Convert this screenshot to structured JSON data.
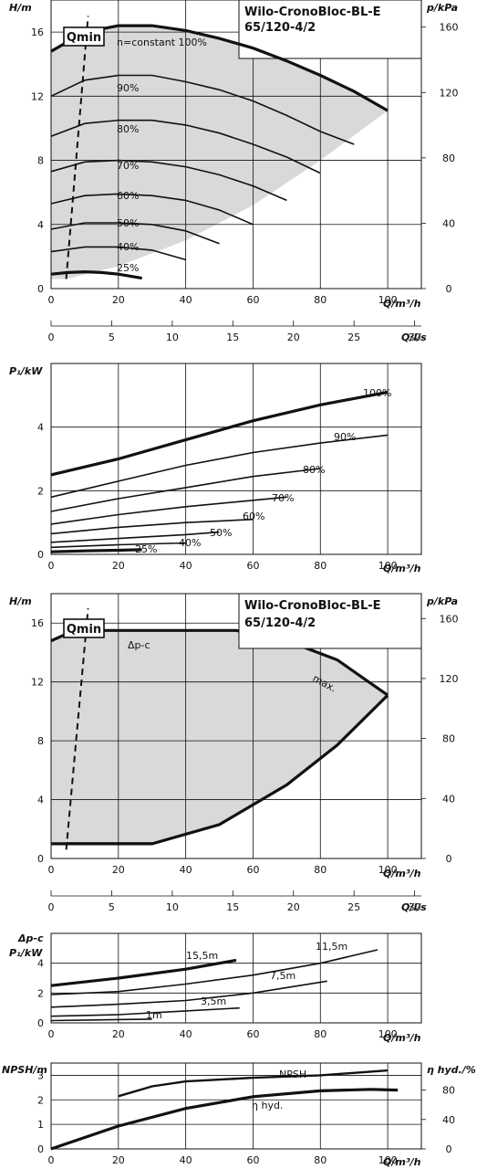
{
  "panels": {
    "head": {
      "title_line1": "Wilo-CronoBloc-BL-E",
      "title_line2": "65/120-4/2",
      "ylabel": "H/m",
      "ylabel_right": "p/kPa",
      "xlabel": "Q/m³/h",
      "qmin_label": "Qmin"
    },
    "flow_ls": {
      "xlabel": "Q/l/s"
    },
    "power": {
      "ylabel": "P₁/kW",
      "xlabel": "Q/m³/h"
    },
    "head2": {
      "title_line1": "Wilo-CronoBloc-BL-E",
      "title_line2": "65/120-4/2",
      "ylabel": "H/m",
      "ylabel_right": "p/kPa",
      "xlabel": "Q/m³/h",
      "qmin_label": "Qmin",
      "dpc_label": "Δp-c",
      "max_label": "max."
    },
    "flow_ls2": {
      "xlabel": "Q/l/s"
    },
    "power2": {
      "ylabel": "Δp-c",
      "ylabel2": "P₁/kW",
      "xlabel": "Q/m³/h"
    },
    "npsh": {
      "ylabel": "NPSH/m",
      "ylabel_right": "η hyd./%",
      "xlabel": "Q/m³/h"
    }
  },
  "chart_data": [
    {
      "id": "head-curves",
      "type": "line",
      "xlabel": "Q/m³/h",
      "ylabel": "H/m",
      "ylabel_right": "p/kPa",
      "xlim": [
        0,
        110
      ],
      "ylim": [
        0,
        18
      ],
      "ylim_right": [
        0,
        176.6
      ],
      "xticks": [
        0,
        20,
        40,
        60,
        80,
        100
      ],
      "yticks": [
        0,
        4,
        8,
        12,
        16
      ],
      "yticks_right": [
        0,
        40,
        80,
        120,
        160
      ],
      "series": [
        {
          "name": "n=constant 100%",
          "x": [
            0,
            10,
            20,
            30,
            40,
            50,
            60,
            70,
            80,
            90,
            100
          ],
          "y": [
            14.8,
            16.0,
            16.4,
            16.4,
            16.1,
            15.6,
            15.0,
            14.2,
            13.3,
            12.3,
            11.1
          ]
        },
        {
          "name": "90%",
          "x": [
            0,
            10,
            20,
            30,
            40,
            50,
            60,
            70,
            80,
            90
          ],
          "y": [
            12.0,
            13.0,
            13.3,
            13.3,
            12.9,
            12.4,
            11.7,
            10.8,
            9.8,
            9.0
          ]
        },
        {
          "name": "80%",
          "x": [
            0,
            10,
            20,
            30,
            40,
            50,
            60,
            70,
            80
          ],
          "y": [
            9.5,
            10.3,
            10.5,
            10.5,
            10.2,
            9.7,
            9.0,
            8.2,
            7.2
          ]
        },
        {
          "name": "70%",
          "x": [
            0,
            10,
            20,
            30,
            40,
            50,
            60,
            70
          ],
          "y": [
            7.3,
            7.9,
            8.0,
            7.9,
            7.6,
            7.1,
            6.4,
            5.5
          ]
        },
        {
          "name": "60%",
          "x": [
            0,
            10,
            20,
            30,
            40,
            50,
            60
          ],
          "y": [
            5.3,
            5.8,
            5.9,
            5.8,
            5.5,
            4.9,
            4.0
          ]
        },
        {
          "name": "50%",
          "x": [
            0,
            10,
            20,
            30,
            40,
            50
          ],
          "y": [
            3.7,
            4.1,
            4.1,
            4.0,
            3.6,
            2.8
          ]
        },
        {
          "name": "40%",
          "x": [
            0,
            10,
            20,
            30,
            40
          ],
          "y": [
            2.3,
            2.6,
            2.6,
            2.4,
            1.8
          ]
        },
        {
          "name": "25%",
          "x": [
            0,
            5,
            10,
            15,
            20,
            27
          ],
          "y": [
            0.9,
            1.0,
            1.05,
            1.0,
            0.9,
            0.65
          ]
        }
      ],
      "qmin": {
        "x": [
          4.5,
          11
        ],
        "y": [
          0.6,
          17
        ]
      },
      "region_lower_boundary": {
        "x": [
          4.5,
          20,
          40,
          60,
          80,
          100
        ],
        "y": [
          0.6,
          1.4,
          3.0,
          5.2,
          8.0,
          11.1
        ]
      }
    },
    {
      "id": "flow-ls-axis",
      "type": "axis",
      "xlabel": "Q/l/s",
      "xticks": [
        0,
        5,
        10,
        15,
        20,
        25,
        30
      ]
    },
    {
      "id": "power-curves",
      "type": "line",
      "xlabel": "Q/m³/h",
      "ylabel": "P₁/kW",
      "xlim": [
        0,
        110
      ],
      "ylim": [
        0,
        6
      ],
      "xticks": [
        0,
        20,
        40,
        60,
        80,
        100
      ],
      "yticks": [
        0,
        2,
        4
      ],
      "series": [
        {
          "name": "100%",
          "x": [
            0,
            20,
            40,
            60,
            80,
            100
          ],
          "y": [
            2.5,
            3.0,
            3.6,
            4.2,
            4.7,
            5.1
          ]
        },
        {
          "name": "90%",
          "x": [
            0,
            20,
            40,
            60,
            80,
            100
          ],
          "y": [
            1.8,
            2.3,
            2.8,
            3.2,
            3.5,
            3.75
          ]
        },
        {
          "name": "80%",
          "x": [
            0,
            20,
            40,
            60,
            80
          ],
          "y": [
            1.35,
            1.75,
            2.1,
            2.45,
            2.7
          ]
        },
        {
          "name": "70%",
          "x": [
            0,
            20,
            40,
            60,
            70
          ],
          "y": [
            0.95,
            1.25,
            1.5,
            1.7,
            1.8
          ]
        },
        {
          "name": "60%",
          "x": [
            0,
            20,
            40,
            60
          ],
          "y": [
            0.65,
            0.85,
            1.0,
            1.1
          ]
        },
        {
          "name": "50%",
          "x": [
            0,
            20,
            40,
            50
          ],
          "y": [
            0.38,
            0.5,
            0.62,
            0.7
          ]
        },
        {
          "name": "40%",
          "x": [
            0,
            20,
            40
          ],
          "y": [
            0.22,
            0.3,
            0.36
          ]
        },
        {
          "name": "25%",
          "x": [
            0,
            10,
            20,
            27
          ],
          "y": [
            0.08,
            0.11,
            0.13,
            0.15
          ]
        }
      ]
    },
    {
      "id": "head-dpc",
      "type": "area",
      "xlabel": "Q/m³/h",
      "ylabel": "H/m",
      "ylabel_right": "p/kPa",
      "xlim": [
        0,
        110
      ],
      "ylim": [
        0,
        18
      ],
      "ylim_right": [
        0,
        176.6
      ],
      "xticks": [
        0,
        20,
        40,
        60,
        80,
        100
      ],
      "yticks": [
        0,
        4,
        8,
        12,
        16
      ],
      "yticks_right": [
        0,
        40,
        80,
        120,
        160
      ],
      "boundary_upper": {
        "x": [
          0,
          7,
          30,
          55,
          70,
          85,
          100
        ],
        "y": [
          14.8,
          15.5,
          15.5,
          15.5,
          14.8,
          13.5,
          11.1
        ]
      },
      "boundary_lower": {
        "x": [
          4.5,
          30,
          50,
          70,
          85,
          100
        ],
        "y": [
          1.0,
          1.0,
          2.3,
          5.0,
          7.7,
          11.1
        ]
      },
      "qmin": {
        "x": [
          4.5,
          11
        ],
        "y": [
          0.6,
          17
        ]
      }
    },
    {
      "id": "flow-ls-axis-2",
      "type": "axis",
      "xlabel": "Q/l/s",
      "xticks": [
        0,
        5,
        10,
        15,
        20,
        25,
        30
      ]
    },
    {
      "id": "power-dpc",
      "type": "line",
      "xlabel": "Q/m³/h",
      "ylabel": "P₁/kW",
      "xlim": [
        0,
        110
      ],
      "ylim": [
        0,
        6
      ],
      "xticks": [
        0,
        20,
        40,
        60,
        80,
        100
      ],
      "yticks": [
        0,
        2,
        4
      ],
      "series": [
        {
          "name": "15,5m",
          "x": [
            0,
            20,
            40,
            55
          ],
          "y": [
            2.5,
            3.0,
            3.6,
            4.2
          ]
        },
        {
          "name": "11,5m",
          "x": [
            0,
            20,
            40,
            60,
            80,
            97
          ],
          "y": [
            1.9,
            2.1,
            2.6,
            3.2,
            4.0,
            4.9
          ]
        },
        {
          "name": "7,5m",
          "x": [
            0,
            20,
            40,
            60,
            82
          ],
          "y": [
            1.05,
            1.25,
            1.5,
            2.0,
            2.8
          ]
        },
        {
          "name": "3,5m",
          "x": [
            0,
            20,
            40,
            56
          ],
          "y": [
            0.45,
            0.55,
            0.8,
            1.0
          ]
        },
        {
          "name": "1m",
          "x": [
            0,
            15,
            30
          ],
          "y": [
            0.15,
            0.2,
            0.25
          ]
        }
      ]
    },
    {
      "id": "npsh-efficiency",
      "type": "line",
      "xlabel": "Q/m³/h",
      "ylabel": "NPSH/m",
      "ylabel_right": "η hyd./%",
      "xlim": [
        0,
        110
      ],
      "ylim": [
        0,
        3.5
      ],
      "ylim_right": [
        0,
        116.7
      ],
      "xticks": [
        0,
        20,
        40,
        60,
        80,
        100
      ],
      "yticks": [
        0,
        1,
        2,
        3
      ],
      "yticks_right": [
        0,
        40,
        80
      ],
      "series": [
        {
          "name": "NPSH",
          "axis": "left",
          "x": [
            20,
            30,
            40,
            60,
            80,
            100
          ],
          "y": [
            2.15,
            2.55,
            2.75,
            2.9,
            3.0,
            3.2
          ]
        },
        {
          "name": "η hyd.",
          "axis": "right",
          "x": [
            0,
            20,
            40,
            60,
            80,
            95,
            103
          ],
          "y": [
            0,
            31,
            55,
            71,
            79,
            81,
            80
          ]
        }
      ]
    }
  ]
}
